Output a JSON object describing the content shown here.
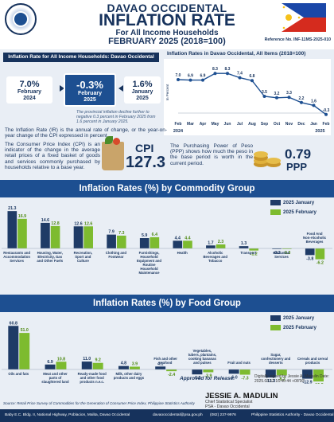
{
  "header": {
    "region": "DAVAO OCCIDENTAL",
    "title": "INFLATION RATE",
    "subtitle": "For All Income Households",
    "period": "FEBRUARY 2025 (2018=100)",
    "reference": "Reference No. INF-11MS-2025-010"
  },
  "summary": {
    "title": "Inflation Rate for All Income Households: Davao Occidental",
    "boxes": [
      {
        "value": "7.0%",
        "label1": "February",
        "label2": "2024"
      },
      {
        "value": "-0.3%",
        "label1": "February",
        "label2": "2025"
      },
      {
        "value": "1.6%",
        "label1": "January",
        "label2": "2025"
      }
    ],
    "note": "The provincial inflation decline further to negative 0.3 percent in February 2025 from 1.6 percent in January 2025."
  },
  "definitions": {
    "ir": "The Inflation Rate (IR) is the annual rate of change, or the year-on-year change of the CPI expressed in percent.",
    "cpi": "The Consumer Price Index (CPI) is an indicator of the change in the average retail prices of a fixed basket of goods and services commonly purchased by households relative to a base year.",
    "cpi_label": "CPI",
    "cpi_value": "127.3",
    "ppp": "The Purchasing Power of Peso (PPP) shows how much the peso in the base period is worth in the current period.",
    "ppp_value": "0.79",
    "ppp_label": "PPP"
  },
  "line_chart": {
    "title": "Inflation Rates in Davao Occidental, All Items (2018=100)",
    "ylabel": "In Percent",
    "year_labels": [
      "2024",
      "2025"
    ],
    "chart_data": {
      "type": "line",
      "x": [
        "Feb",
        "Mar",
        "Apr",
        "May",
        "Jun",
        "Jul",
        "Aug",
        "Sep",
        "Oct",
        "Nov",
        "Dec",
        "Jan",
        "Feb"
      ],
      "values": [
        7.0,
        6.9,
        6.9,
        8.3,
        8.3,
        7.4,
        6.8,
        3.5,
        3.2,
        3.3,
        2.2,
        1.6,
        -0.3
      ],
      "ylim": [
        -1,
        10
      ],
      "color": "#1d4f91"
    }
  },
  "commodity": {
    "title": "Inflation Rates (%) by Commodity Group",
    "legend": [
      "2025 January",
      "2025 February"
    ],
    "colors": [
      "#1f3b66",
      "#7dbb2f"
    ],
    "chart_data": {
      "type": "bar",
      "categories": [
        "Restaurants and Accommodation Services",
        "Housing, Water, Electricity, Gas and Other Fuels",
        "Recreation, Sport and Culture",
        "Clothing and Footwear",
        "Furnishings, Household Equipment and Routine Household Maintenance",
        "Health",
        "Alcoholic Beverages and Tobacco",
        "Transport",
        "Education Services",
        "Food And Non-Alcoholic Beverages"
      ],
      "series": [
        {
          "name": "2025 January",
          "values": [
            21.3,
            14.6,
            12.6,
            7.9,
            5.9,
            4.4,
            1.7,
            1.3,
            -0.3,
            -3.8
          ]
        },
        {
          "name": "2025 February",
          "values": [
            16.9,
            12.8,
            12.6,
            7.3,
            6.4,
            4.4,
            2.3,
            -1.2,
            -0.3,
            -6.2
          ]
        }
      ]
    }
  },
  "food": {
    "title": "Inflation Rates (%) by Food Group",
    "legend": [
      "2025 January",
      "2025 February"
    ],
    "colors": [
      "#1f3b66",
      "#7dbb2f"
    ],
    "chart_data": {
      "type": "bar",
      "categories": [
        "Oils and fats",
        "Meat and other parts of slaughtered land animals",
        "Ready-made food and other food products n.e.c.",
        "Milk, other dairy products and eggs",
        "Fish and other seafood",
        "Vegetables, tubers, plantains, cooking bananas and pulses",
        "Fruit and nuts",
        "Sugar, confectionery and desserts",
        "Cereals and cereal products"
      ],
      "series": [
        {
          "name": "2025 January",
          "values": [
            60.8,
            6.9,
            11.0,
            4.8,
            4.1,
            -6.9,
            -6.0,
            -11.3,
            -12.9
          ]
        },
        {
          "name": "2025 February",
          "values": [
            51.0,
            10.8,
            9.2,
            3.9,
            -2.4,
            -3.9,
            -7.3,
            -8.2,
            -16.8
          ]
        }
      ]
    }
  },
  "approval": {
    "approved_for_release": "Approved for Release:",
    "digital_sign": "Digitally signed by Jessie A. Madulin Date: 2025.03.12 16:40:44 +08'00'",
    "name": "JESSIE A. MADULIN",
    "position1": "Chief Statistical Specialist",
    "position2": "PSA - Davao Occidental"
  },
  "source": "Source: Retail Price Survey of Commodities for the Generation of Consumer Price Index, Philippine Statistics Authority",
  "footer": {
    "address": "Baby E.C. Bldg. II, National Highway, Poblacion, Malita, Davao Occidental",
    "email": "davaooccidental@psa.gov.ph",
    "phone": "(082) 237-9976",
    "org": "Philippine Statistics Authority - Davao Occidental"
  }
}
